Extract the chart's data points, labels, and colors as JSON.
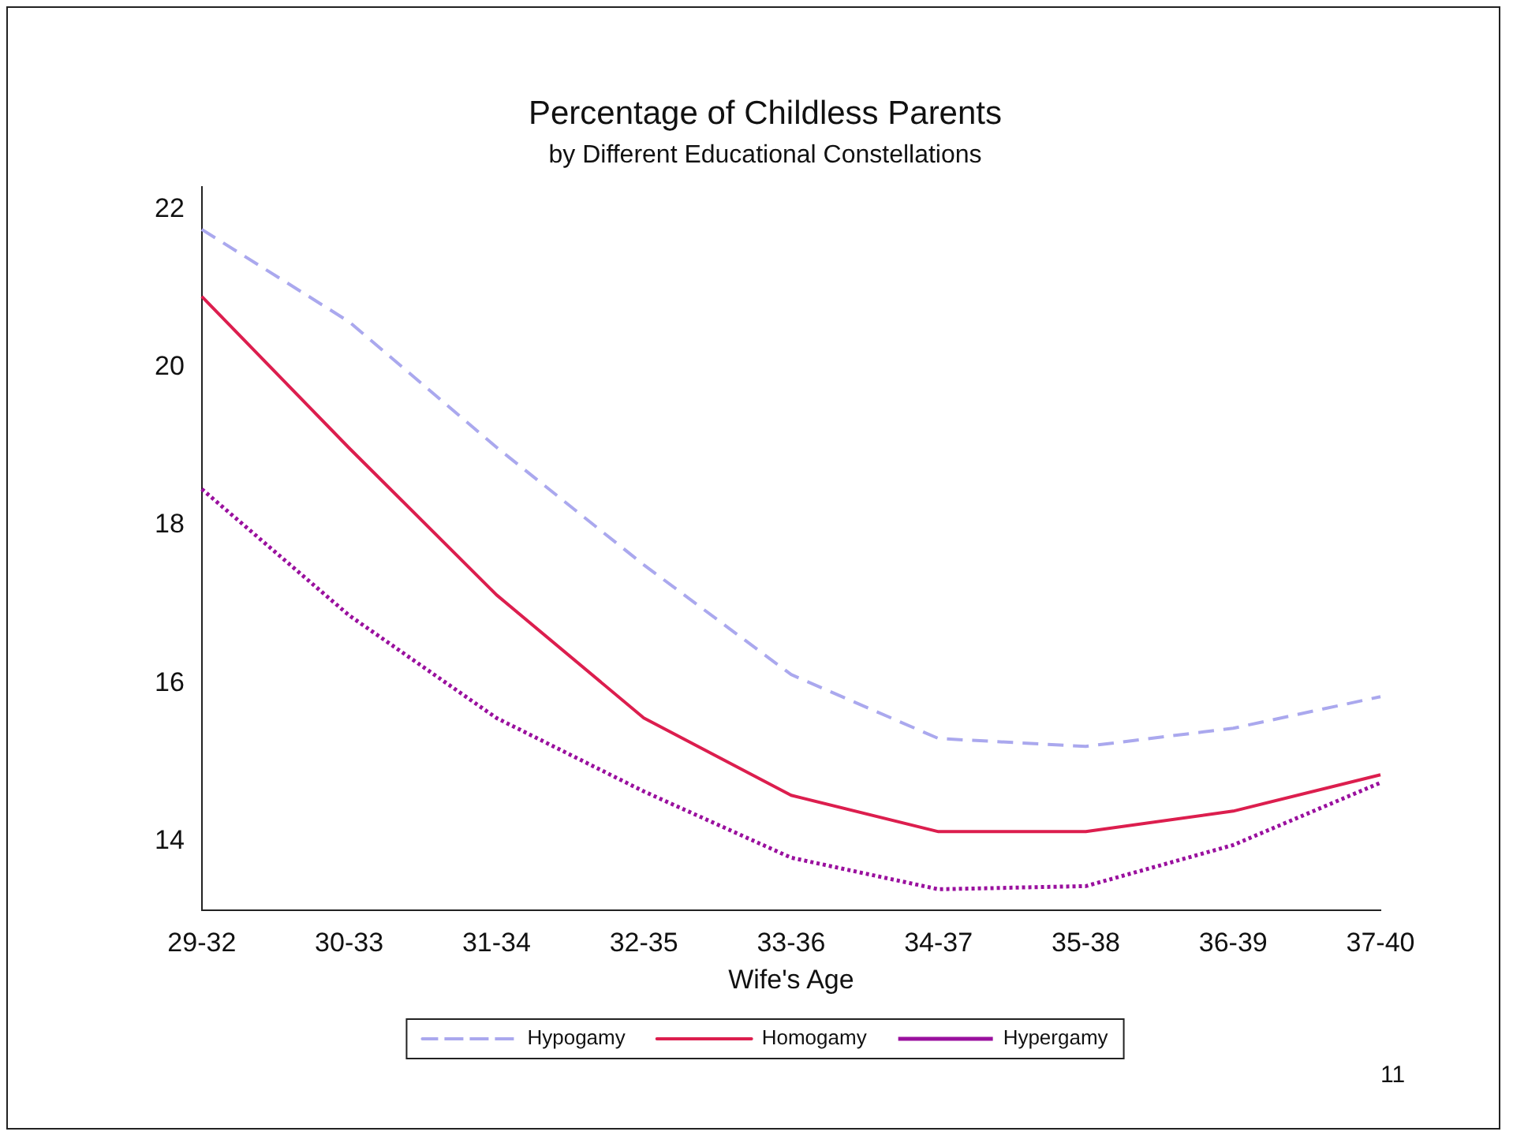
{
  "chart_data": {
    "type": "line",
    "title": "Percentage of Childless Parents",
    "subtitle": "by Different Educational Constellations",
    "xlabel": "Wife's Age",
    "categories": [
      "29-32",
      "30-33",
      "31-34",
      "32-35",
      "33-36",
      "34-37",
      "35-38",
      "36-39",
      "37-40"
    ],
    "series": [
      {
        "name": "Hypogamy",
        "color": "#aaa8ee",
        "line_style": "dashed",
        "values": [
          21.75,
          20.58,
          18.99,
          17.5,
          16.11,
          15.3,
          15.2,
          15.43,
          15.83
        ]
      },
      {
        "name": "Homogamy",
        "color": "#dc1e4e",
        "line_style": "solid",
        "values": [
          20.9,
          18.98,
          17.12,
          15.56,
          14.58,
          14.12,
          14.12,
          14.38,
          14.84
        ]
      },
      {
        "name": "Hypergamy",
        "color": "#9a109e",
        "line_style": "dotted",
        "values": [
          18.46,
          16.86,
          15.56,
          14.63,
          13.79,
          13.39,
          13.43,
          13.95,
          14.74
        ]
      }
    ],
    "ylim": [
      13.12,
      22.29
    ],
    "yticks": [
      14,
      16,
      18,
      20,
      22
    ],
    "grid": false,
    "legend": "bottom",
    "marker": "none",
    "annotations": [
      "11"
    ]
  }
}
